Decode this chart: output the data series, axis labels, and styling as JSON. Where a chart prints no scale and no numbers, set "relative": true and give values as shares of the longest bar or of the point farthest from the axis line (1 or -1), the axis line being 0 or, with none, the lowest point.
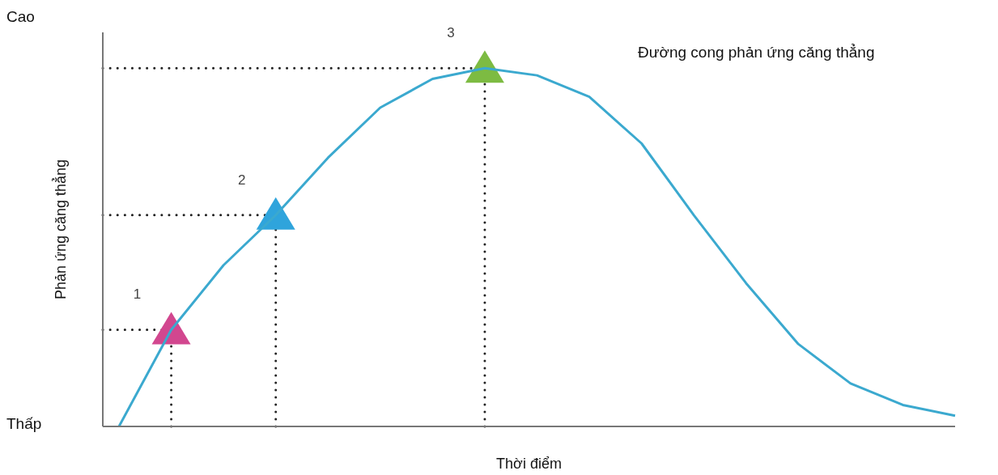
{
  "chart_data": {
    "type": "line",
    "title": "Đường cong phản ứng căng thẳng",
    "xlabel": "Thời điểm",
    "ylabel": "Phản ứng căng thẳng",
    "relative": true,
    "annotations": [
      "Cao",
      "Thấp",
      "1",
      "2",
      "3"
    ],
    "categories": [
      null,
      null,
      null,
      null,
      null,
      null,
      null,
      null,
      null,
      null,
      null,
      null,
      null,
      null,
      null,
      null,
      null
    ],
    "series": [
      {
        "color": "#3ba9cf",
        "values": [
          0,
          0.27,
          0.45,
          0.59,
          0.75,
          0.89,
          0.97,
          1.0,
          0.98,
          0.92,
          0.79,
          0.59,
          0.4,
          0.23,
          0.12,
          0.06,
          0.03
        ]
      }
    ],
    "ref_lines": [
      {
        "axis": "y",
        "value": 0.27,
        "color": "#222222",
        "line_style": "dotted"
      },
      {
        "axis": "y",
        "value": 0.59,
        "color": "#222222",
        "line_style": "dotted"
      },
      {
        "axis": "y",
        "value": 1.0,
        "color": "#222222",
        "line_style": "dotted"
      }
    ]
  }
}
